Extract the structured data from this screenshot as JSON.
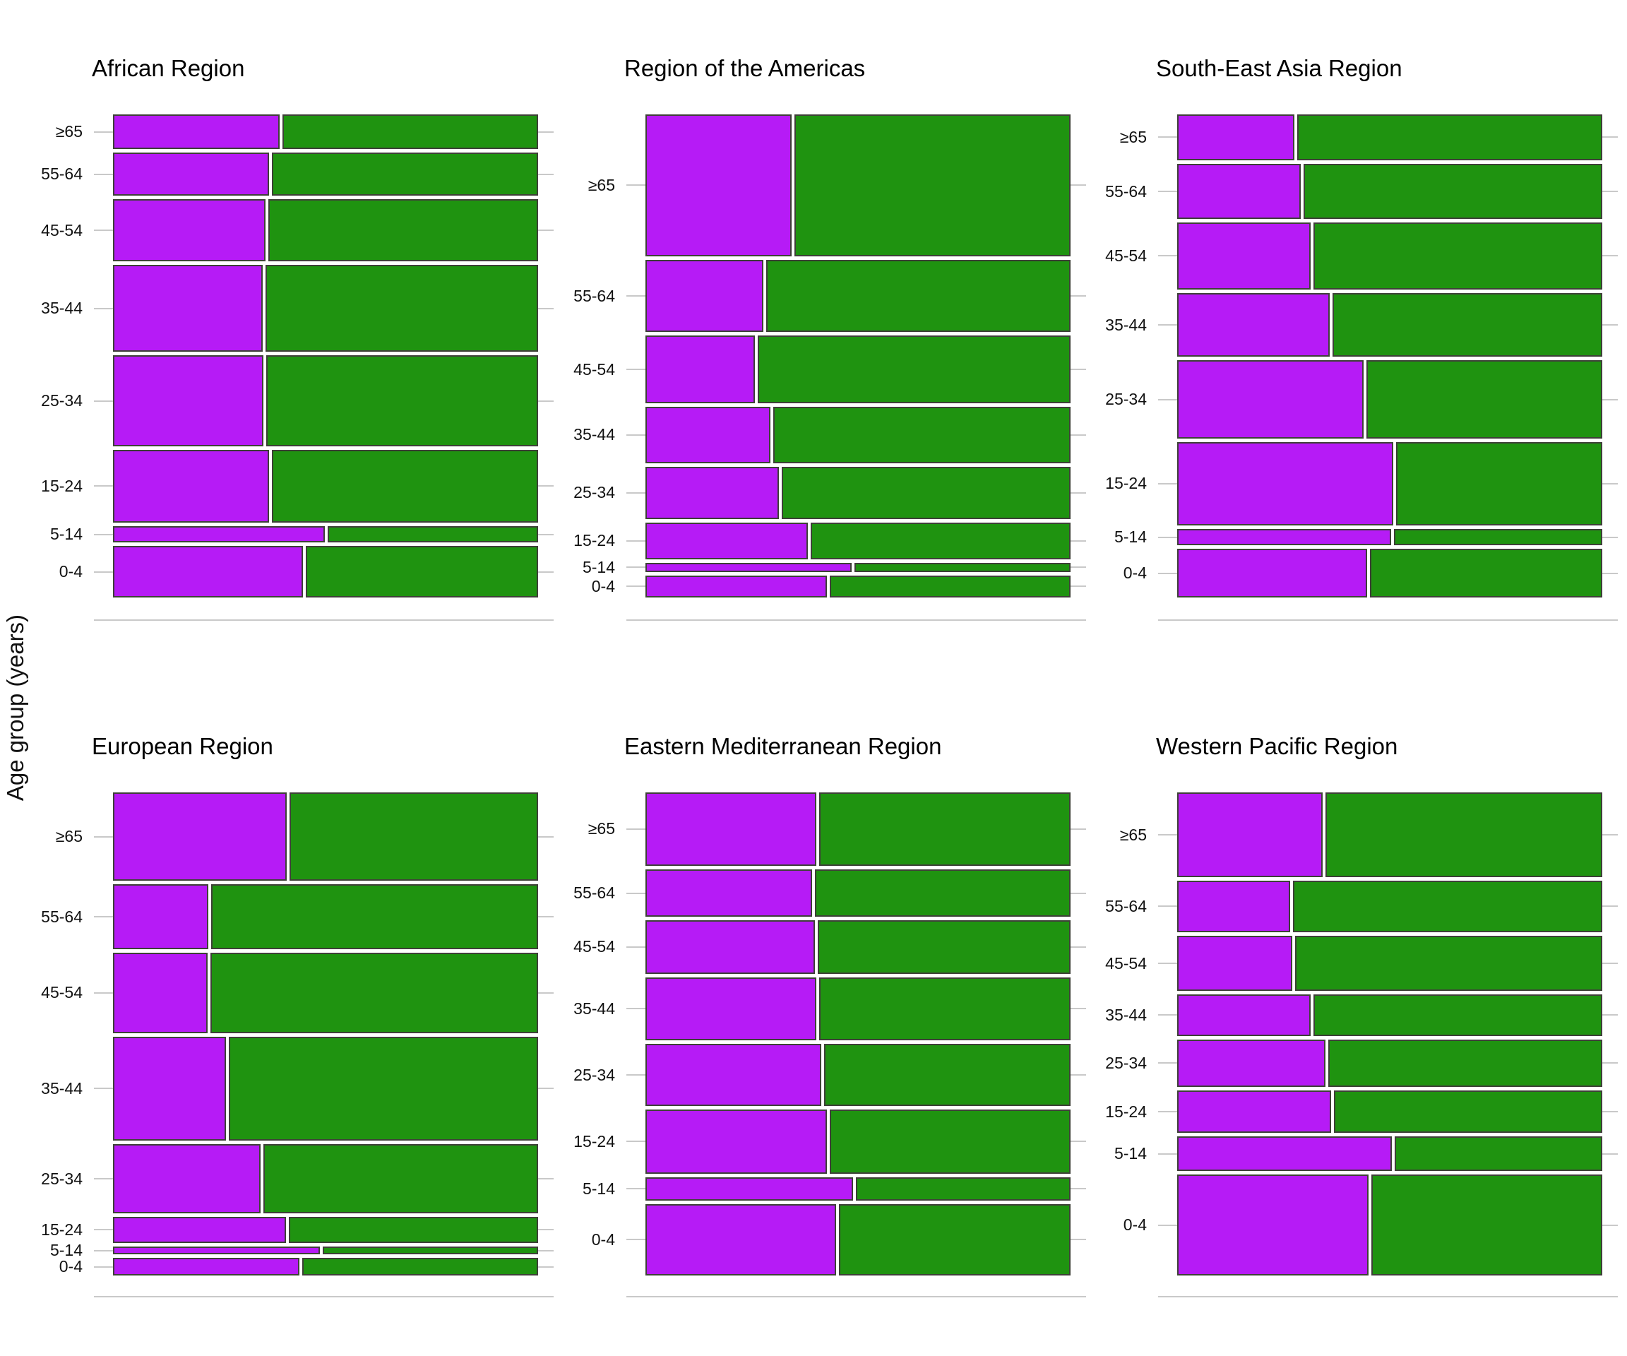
{
  "chart_data": {
    "type": "mosaic",
    "description": "Six-panel mosaic plot; one panel per WHO region. Each horizontal bar is an age group whose height is the group's share of the region total; each bar is split into a purple (left) and green (right) segment whose widths are within-group proportions. No x-axis tick labels or legend are shown.",
    "y_axis_label": "Age group (years)",
    "age_groups_top_to_bottom": [
      "≥65",
      "55-64",
      "45-54",
      "35-44",
      "25-34",
      "15-24",
      "5-14",
      "0-4"
    ],
    "colors": {
      "purple_segment": "#B61BF6",
      "green_segment": "#1F9310",
      "bar_border": "#3E4038",
      "grid": "#C9C9C9",
      "axis_text": "#111111",
      "title_text": "#000000",
      "background": "#FFFFFF"
    },
    "legend": "none",
    "panels": [
      {
        "title": "African Region",
        "row": 0,
        "col": 0,
        "bars": [
          {
            "age": "≥65",
            "height_share": 0.076,
            "purple_share": 0.395
          },
          {
            "age": "55-64",
            "height_share": 0.093,
            "purple_share": 0.369
          },
          {
            "age": "45-54",
            "height_share": 0.136,
            "purple_share": 0.362
          },
          {
            "age": "35-44",
            "height_share": 0.19,
            "purple_share": 0.355
          },
          {
            "age": "25-34",
            "height_share": 0.198,
            "purple_share": 0.356
          },
          {
            "age": "15-24",
            "height_share": 0.159,
            "purple_share": 0.37
          },
          {
            "age": "5-14",
            "height_share": 0.036,
            "purple_share": 0.502
          },
          {
            "age": "0-4",
            "height_share": 0.112,
            "purple_share": 0.449
          }
        ]
      },
      {
        "title": "Region of the Americas",
        "row": 0,
        "col": 1,
        "bars": [
          {
            "age": "≥65",
            "height_share": 0.309,
            "purple_share": 0.346
          },
          {
            "age": "55-64",
            "height_share": 0.158,
            "purple_share": 0.279
          },
          {
            "age": "45-54",
            "height_share": 0.148,
            "purple_share": 0.259
          },
          {
            "age": "35-44",
            "height_share": 0.123,
            "purple_share": 0.296
          },
          {
            "age": "25-34",
            "height_share": 0.114,
            "purple_share": 0.316
          },
          {
            "age": "15-24",
            "height_share": 0.08,
            "purple_share": 0.385
          },
          {
            "age": "5-14",
            "height_share": 0.02,
            "purple_share": 0.488
          },
          {
            "age": "0-4",
            "height_share": 0.048,
            "purple_share": 0.43
          }
        ]
      },
      {
        "title": "South-East Asia Region",
        "row": 0,
        "col": 2,
        "bars": [
          {
            "age": "≥65",
            "height_share": 0.1,
            "purple_share": 0.278
          },
          {
            "age": "55-64",
            "height_share": 0.121,
            "purple_share": 0.293
          },
          {
            "age": "45-54",
            "height_share": 0.145,
            "purple_share": 0.316
          },
          {
            "age": "35-44",
            "height_share": 0.14,
            "purple_share": 0.361
          },
          {
            "age": "25-34",
            "height_share": 0.171,
            "purple_share": 0.441
          },
          {
            "age": "15-24",
            "height_share": 0.181,
            "purple_share": 0.511
          },
          {
            "age": "5-14",
            "height_share": 0.036,
            "purple_share": 0.507
          },
          {
            "age": "0-4",
            "height_share": 0.106,
            "purple_share": 0.449
          }
        ]
      },
      {
        "title": "European Region",
        "row": 1,
        "col": 0,
        "bars": [
          {
            "age": "≥65",
            "height_share": 0.193,
            "purple_share": 0.412
          },
          {
            "age": "55-64",
            "height_share": 0.142,
            "purple_share": 0.226
          },
          {
            "age": "45-54",
            "height_share": 0.175,
            "purple_share": 0.224
          },
          {
            "age": "35-44",
            "height_share": 0.226,
            "purple_share": 0.267
          },
          {
            "age": "25-34",
            "height_share": 0.151,
            "purple_share": 0.35
          },
          {
            "age": "15-24",
            "height_share": 0.058,
            "purple_share": 0.41
          },
          {
            "age": "5-14",
            "height_share": 0.017,
            "purple_share": 0.49
          },
          {
            "age": "0-4",
            "height_share": 0.038,
            "purple_share": 0.442
          }
        ]
      },
      {
        "title": "Eastern Mediterranean Region",
        "row": 1,
        "col": 1,
        "bars": [
          {
            "age": "≥65",
            "height_share": 0.16,
            "purple_share": 0.405
          },
          {
            "age": "55-64",
            "height_share": 0.104,
            "purple_share": 0.394
          },
          {
            "age": "45-54",
            "height_share": 0.117,
            "purple_share": 0.402
          },
          {
            "age": "35-44",
            "height_share": 0.136,
            "purple_share": 0.405
          },
          {
            "age": "25-34",
            "height_share": 0.136,
            "purple_share": 0.417
          },
          {
            "age": "15-24",
            "height_share": 0.14,
            "purple_share": 0.429
          },
          {
            "age": "5-14",
            "height_share": 0.051,
            "purple_share": 0.492
          },
          {
            "age": "0-4",
            "height_share": 0.156,
            "purple_share": 0.452
          }
        ]
      },
      {
        "title": "Western Pacific Region",
        "row": 1,
        "col": 2,
        "bars": [
          {
            "age": "≥65",
            "height_share": 0.185,
            "purple_share": 0.344
          },
          {
            "age": "55-64",
            "height_share": 0.112,
            "purple_share": 0.268
          },
          {
            "age": "45-54",
            "height_share": 0.121,
            "purple_share": 0.273
          },
          {
            "age": "35-44",
            "height_share": 0.09,
            "purple_share": 0.316
          },
          {
            "age": "25-34",
            "height_share": 0.103,
            "purple_share": 0.351
          },
          {
            "age": "15-24",
            "height_share": 0.093,
            "purple_share": 0.364
          },
          {
            "age": "5-14",
            "height_share": 0.076,
            "purple_share": 0.508
          },
          {
            "age": "0-4",
            "height_share": 0.22,
            "purple_share": 0.454
          }
        ]
      }
    ]
  }
}
